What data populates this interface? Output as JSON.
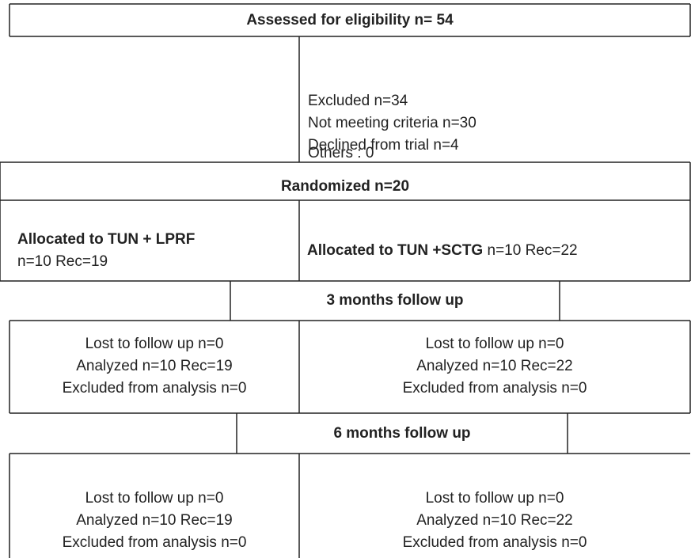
{
  "eligibility": {
    "title": "Assessed for eligibility n= 54"
  },
  "excluded": {
    "lines": [
      "Excluded n=34",
      "Not meeting criteria n=30",
      "Declined from trial n=4",
      "Others : 0"
    ]
  },
  "randomized": {
    "title": "Randomized n=20"
  },
  "allocation": {
    "left": {
      "bold": "Allocated to TUN + LPRF",
      "detail": "n=10  Rec=19"
    },
    "right": {
      "bold": "Allocated to TUN +SCTG",
      "detail": " n=10 Rec=22"
    }
  },
  "followup3": {
    "title": "3 months follow up",
    "left": [
      "Lost to follow up n=0",
      "Analyzed n=10  Rec=19",
      "Excluded from analysis n=0"
    ],
    "right": [
      "Lost to follow up n=0",
      "Analyzed n=10 Rec=22",
      "Excluded from analysis n=0"
    ]
  },
  "followup6": {
    "title": "6 months follow up",
    "left": [
      "Lost to follow up n=0",
      "Analyzed n=10 Rec=19",
      "Excluded from analysis n=0"
    ],
    "right": [
      "Lost to follow up n=0",
      "Analyzed n=10 Rec=22",
      "Excluded from analysis n=0"
    ]
  }
}
